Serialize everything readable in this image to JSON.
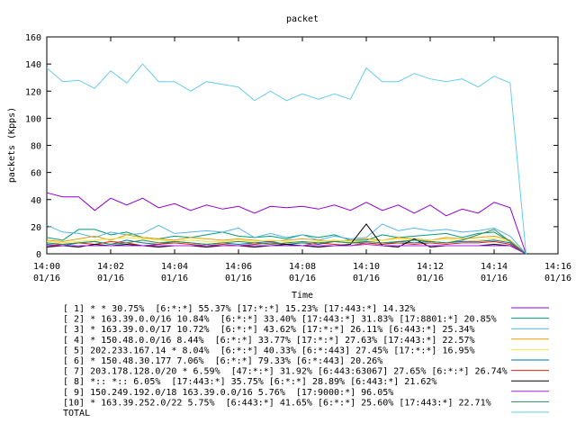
{
  "chart_data": {
    "type": "line",
    "title": "packet",
    "xlabel": "Time",
    "ylabel": "packets (Kpps)",
    "ylim": [
      0,
      160
    ],
    "yticks": [
      0,
      20,
      40,
      60,
      80,
      100,
      120,
      140,
      160
    ],
    "xlim": [
      "14:00",
      "14:16"
    ],
    "xticks": [
      {
        "time": "14:00",
        "date": "01/16"
      },
      {
        "time": "14:02",
        "date": "01/16"
      },
      {
        "time": "14:04",
        "date": "01/16"
      },
      {
        "time": "14:06",
        "date": "01/16"
      },
      {
        "time": "14:08",
        "date": "01/16"
      },
      {
        "time": "14:10",
        "date": "01/16"
      },
      {
        "time": "14:12",
        "date": "01/16"
      },
      {
        "time": "14:14",
        "date": "01/16"
      },
      {
        "time": "14:16",
        "date": "01/16"
      }
    ],
    "grid": false,
    "legend_position": "bottom",
    "x_minutes": [
      0,
      0.5,
      1,
      1.5,
      2,
      2.5,
      3,
      3.5,
      4,
      4.5,
      5,
      5.5,
      6,
      6.5,
      7,
      7.5,
      8,
      8.5,
      9,
      9.5,
      10,
      10.5,
      11,
      11.5,
      12,
      12.5,
      13,
      13.5,
      14,
      14.5,
      15
    ],
    "series": [
      {
        "name": "[ 1] * * 30.75%  [6:*:*] 55.37% [17:*:*] 15.23% [17:443:*] 14.32%",
        "color": "#9400d3",
        "values": [
          45,
          42,
          42,
          32,
          41,
          36,
          41,
          34,
          37,
          32,
          36,
          33,
          35,
          30,
          35,
          34,
          35,
          33,
          36,
          32,
          38,
          32,
          36,
          30,
          36,
          28,
          33,
          30,
          38,
          34,
          0
        ]
      },
      {
        "name": "[ 2] * 163.39.0.0/16 10.84%  [6:*:*] 33.40% [17:443:*] 31.83% [17:8801:*] 20.85%",
        "color": "#009e73",
        "values": [
          12,
          10,
          18,
          18,
          14,
          16,
          12,
          11,
          13,
          12,
          14,
          16,
          13,
          12,
          13,
          11,
          14,
          12,
          14,
          10,
          10,
          14,
          12,
          13,
          14,
          15,
          12,
          15,
          16,
          9,
          0
        ]
      },
      {
        "name": "[ 3] * 163.39.0.0/17 10.72%  [6:*:*] 43.62% [17:*:*] 26.11% [6:443:*] 25.34%",
        "color": "#56b4e9",
        "values": [
          21,
          16,
          15,
          12,
          16,
          14,
          15,
          21,
          15,
          16,
          17,
          16,
          19,
          12,
          15,
          12,
          14,
          10,
          13,
          11,
          12,
          22,
          17,
          19,
          17,
          18,
          16,
          17,
          19,
          13,
          0
        ]
      },
      {
        "name": "[ 4] * 150.48.0.0/16 8.44%  [6:*:*] 33.77% [17:*:*] 27.63% [17:443:*] 22.57%",
        "color": "#e69f00",
        "values": [
          10,
          9,
          11,
          13,
          10,
          14,
          12,
          11,
          10,
          12,
          11,
          10,
          11,
          10,
          9,
          10,
          11,
          10,
          9,
          10,
          11,
          10,
          12,
          11,
          10,
          12,
          11,
          12,
          13,
          10,
          0
        ]
      },
      {
        "name": "[ 5] 202.233.167.14 * 8.04%  [6:*:*] 40.33% [6:*:443] 27.45% [17:*:*] 16.95%",
        "color": "#f0e442",
        "values": [
          9,
          8,
          9,
          10,
          11,
          12,
          11,
          10,
          9,
          10,
          9,
          9,
          10,
          9,
          10,
          9,
          8,
          9,
          10,
          9,
          9,
          10,
          11,
          10,
          10,
          11,
          9,
          10,
          11,
          9,
          0
        ]
      },
      {
        "name": "[ 6] * 150.48.30.177 7.06%  [6:*:*] 79.33% [6:*:443] 20.26%",
        "color": "#0072b2",
        "values": [
          7,
          6,
          8,
          9,
          7,
          10,
          8,
          7,
          9,
          8,
          7,
          8,
          7,
          8,
          9,
          7,
          8,
          7,
          9,
          8,
          8,
          7,
          9,
          8,
          9,
          8,
          9,
          9,
          10,
          8,
          0
        ]
      },
      {
        "name": "[ 7] 203.178.128.0/20 * 6.59%  [47:*:*] 31.92% [6:443:63067] 27.65% [6:*:*] 26.74%",
        "color": "#e51e10",
        "values": [
          6,
          7,
          8,
          7,
          9,
          8,
          6,
          7,
          8,
          7,
          6,
          7,
          6,
          7,
          8,
          7,
          6,
          8,
          7,
          6,
          8,
          7,
          8,
          7,
          8,
          7,
          8,
          8,
          9,
          7,
          0
        ]
      },
      {
        "name": "[ 8] *:: *:: 6.05%  [17:443:*] 35.75% [6:*:*] 28.89% [6:443:*] 21.62%",
        "color": "#000000",
        "values": [
          5,
          6,
          5,
          7,
          6,
          7,
          6,
          5,
          6,
          6,
          5,
          6,
          6,
          5,
          6,
          7,
          6,
          5,
          6,
          7,
          22,
          6,
          5,
          11,
          5,
          6,
          6,
          6,
          7,
          6,
          0
        ]
      },
      {
        "name": "[ 9] 150.249.192.0/18 163.39.0.0/16 5.76%  [17:9000:*] 96.05%",
        "color": "#a020f0",
        "values": [
          6,
          6,
          6,
          6,
          6,
          6,
          6,
          6,
          6,
          6,
          6,
          6,
          6,
          6,
          6,
          6,
          6,
          6,
          6,
          6,
          7,
          6,
          6,
          6,
          6,
          6,
          6,
          6,
          6,
          6,
          0
        ]
      },
      {
        "name": "[10] * 163.39.252.0/22 5.75%  [6:443:*] 41.65% [6:*:*] 25.60% [17:443:*] 22.71%",
        "color": "#2e8b57",
        "values": [
          8,
          7,
          8,
          9,
          7,
          8,
          10,
          8,
          9,
          8,
          7,
          8,
          9,
          8,
          7,
          8,
          9,
          8,
          9,
          8,
          9,
          8,
          9,
          10,
          9,
          8,
          10,
          14,
          18,
          9,
          0
        ]
      },
      {
        "name": "TOTAL",
        "color": "#66ccee",
        "values": [
          137,
          127,
          128,
          122,
          135,
          126,
          140,
          127,
          127,
          120,
          127,
          125,
          123,
          113,
          120,
          113,
          118,
          114,
          118,
          114,
          137,
          127,
          127,
          133,
          129,
          127,
          129,
          123,
          131,
          126,
          0
        ]
      }
    ]
  }
}
